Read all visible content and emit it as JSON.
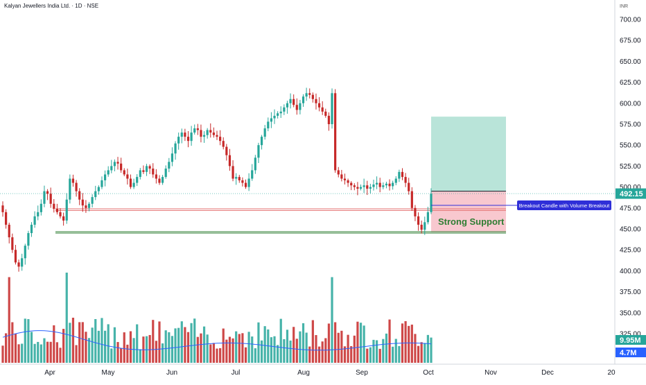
{
  "header": {
    "title": "Kalyan Jewellers India Ltd. · 1D · NSE",
    "currency": "INR"
  },
  "chart_data": {
    "type": "candlestick",
    "y_ticks": [
      "700.00",
      "675.00",
      "650.00",
      "625.00",
      "600.00",
      "575.00",
      "550.00",
      "525.00",
      "500.00",
      "475.00",
      "450.00",
      "425.00",
      "400.00",
      "375.00",
      "350.00",
      "325.00"
    ],
    "x_ticks": [
      "Apr",
      "May",
      "Jun",
      "Jul",
      "Aug",
      "Sep",
      "Oct",
      "Nov",
      "Dec",
      "20"
    ],
    "ylim": [
      320,
      712
    ],
    "last_price": "492.15",
    "volume_label": "9.95M",
    "volume_avg_label": "4.7M",
    "annotations": {
      "callout": "Breakout Candle with Volume Breakout",
      "support_label": "Strong Support",
      "support_price": 445,
      "resistance_prices": [
        472,
        474
      ],
      "target_zone": [
        495,
        584
      ],
      "stop_zone": [
        446,
        495
      ]
    },
    "colors": {
      "up": "#26a69a",
      "down": "#c62828",
      "target": "#b9e4d9",
      "stop": "#f8c8cf",
      "callout": "#2f2fd8",
      "support_text": "#2e7d32"
    },
    "candle_closes": [
      470,
      455,
      440,
      425,
      410,
      405,
      415,
      430,
      445,
      455,
      465,
      470,
      480,
      495,
      492,
      480,
      474,
      470,
      465,
      460,
      485,
      510,
      505,
      495,
      485,
      478,
      475,
      480,
      488,
      495,
      500,
      508,
      515,
      520,
      525,
      530,
      528,
      520,
      515,
      510,
      500,
      505,
      512,
      520,
      518,
      525,
      522,
      515,
      510,
      505,
      512,
      522,
      530,
      540,
      552,
      560,
      565,
      560,
      555,
      565,
      570,
      568,
      560,
      562,
      568,
      565,
      562,
      560,
      555,
      548,
      538,
      525,
      510,
      512,
      508,
      505,
      500,
      510,
      520,
      535,
      550,
      560,
      570,
      578,
      582,
      585,
      588,
      590,
      595,
      600,
      605,
      598,
      592,
      600,
      608,
      612,
      610,
      605,
      600,
      595,
      590,
      585,
      575,
      612,
      520,
      515,
      510,
      508,
      505,
      502,
      500,
      498,
      500,
      502,
      498,
      500,
      503,
      505,
      500,
      502,
      504,
      501,
      505,
      510,
      518,
      512,
      505,
      495,
      475,
      465,
      455,
      449,
      458,
      470,
      492
    ]
  }
}
